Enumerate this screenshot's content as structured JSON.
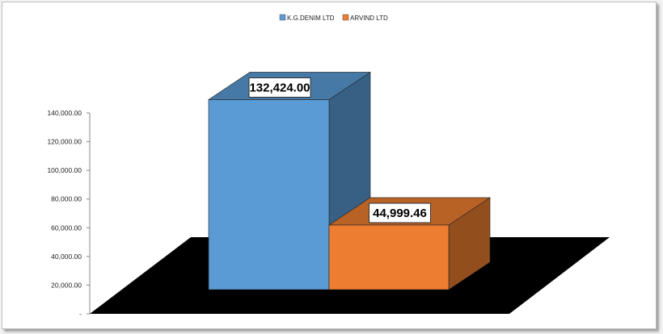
{
  "chart_data": {
    "type": "bar",
    "three_d": true,
    "categories": [
      ""
    ],
    "series": [
      {
        "name": "K.G.DENIM LTD",
        "values": [
          132424.0
        ],
        "color": "#5b9bd5",
        "label": "132,424.00"
      },
      {
        "name": "ARVIND LTD",
        "values": [
          44999.46
        ],
        "color": "#ed7d31",
        "label": "44,999.46"
      }
    ],
    "y_ticks": [
      0,
      20000,
      40000,
      60000,
      80000,
      100000,
      120000,
      140000
    ],
    "y_tick_labels": [
      "-",
      "20,000.00",
      "40,000.00",
      "60,000.00",
      "80,000.00",
      "100,000.00",
      "120,000.00",
      "140,000.00"
    ],
    "ylim": [
      0,
      140000
    ],
    "title": "",
    "xlabel": "",
    "ylabel": "",
    "grid": false,
    "legend_position": "top-center",
    "floor_color": "#000000"
  }
}
